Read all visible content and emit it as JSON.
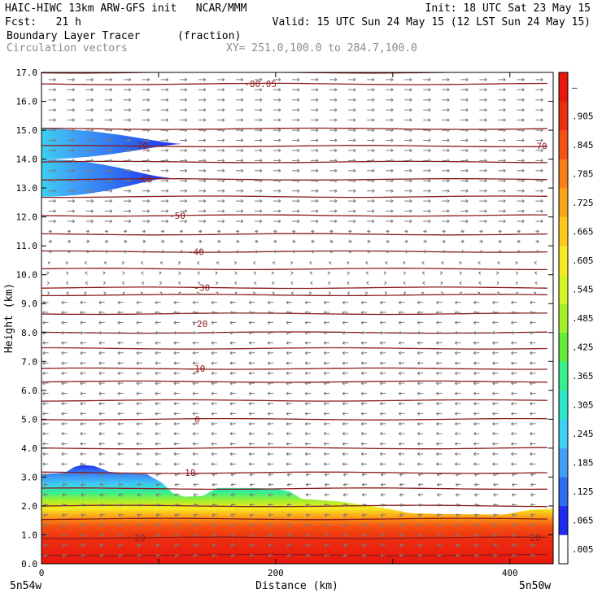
{
  "header": {
    "line1_left": "HAIC-HIWC 13km ARW-GFS init   NCAR/MMM",
    "line1_right": "Init: 18 UTC Sat 23 May 15",
    "line2_left": "Fcst:   21 h",
    "line2_right": "Valid: 15 UTC Sun 24 May 15 (12 LST Sun 24 May 15)",
    "field_name": "Boundary Layer Tracer",
    "field_units": "(fraction)",
    "vector_label": "Circulation vectors",
    "section_label": "XY= 251.0,100.0 to 284.7,100.0"
  },
  "colors": {
    "contour": "#8b1a1a",
    "vector": "#7a7a7a",
    "axis": "#000000"
  },
  "chart_data": {
    "type": "heatmap",
    "xlabel": "Distance (km)",
    "ylabel": "Height (km)",
    "xlim": [
      0,
      437
    ],
    "ylim": [
      0,
      17
    ],
    "x_ticks": [
      0,
      200,
      400
    ],
    "y_ticks": [
      "0.0",
      "1.0",
      "2.0",
      "3.0",
      "4.0",
      "5.0",
      "6.0",
      "7.0",
      "8.0",
      "9.0",
      "10.0",
      "11.0",
      "12.0",
      "13.0",
      "14.0",
      "15.0",
      "16.0",
      "17.0"
    ],
    "x_endpoints": [
      "5n54w",
      "5n50w"
    ],
    "colorbar": {
      "labels": [
        ".005",
        ".065",
        ".125",
        ".185",
        ".245",
        ".305",
        ".365",
        ".425",
        ".485",
        ".545",
        ".605",
        ".665",
        ".725",
        ".785",
        ".845",
        ".905",
        "–"
      ],
      "colors": [
        "#ffffff",
        "#1f2cf0",
        "#2e6cf2",
        "#3fa0f6",
        "#3cd0f2",
        "#2ee6c8",
        "#36f08c",
        "#62ee38",
        "#a2f02a",
        "#d6f426",
        "#f8ea22",
        "#fcc81e",
        "#fca41a",
        "#f98016",
        "#f35212",
        "#ec2e10",
        "#e8160e"
      ]
    },
    "contour_labels": [
      {
        "text": "-80.05",
        "x": 187,
        "y": 16.6
      },
      {
        "text": "-70",
        "x": 84,
        "y": 14.45
      },
      {
        "text": "-70",
        "x": 425,
        "y": 14.45
      },
      {
        "text": "-60",
        "x": 88,
        "y": 13.3
      },
      {
        "text": "-50",
        "x": 116,
        "y": 12.05
      },
      {
        "text": "-40",
        "x": 132,
        "y": 10.8
      },
      {
        "text": "-30",
        "x": 137,
        "y": 9.55
      },
      {
        "text": "-20",
        "x": 135,
        "y": 8.3
      },
      {
        "text": "-10",
        "x": 133,
        "y": 6.75
      },
      {
        "text": "0",
        "x": 133,
        "y": 5.0
      },
      {
        "text": "10",
        "x": 127,
        "y": 3.15
      },
      {
        "text": "20",
        "x": 84,
        "y": 0.9
      },
      {
        "text": "20",
        "x": 422,
        "y": 0.9
      }
    ],
    "contour_levels_km": [
      0.3,
      0.9,
      1.55,
      2.0,
      2.6,
      3.15,
      4.0,
      5.0,
      5.65,
      6.3,
      6.75,
      7.45,
      8.0,
      8.65,
      9.3,
      9.55,
      10.2,
      10.8,
      11.4,
      12.05,
      12.7,
      13.3,
      13.9,
      14.45,
      15.05,
      16.6,
      17.0
    ],
    "boundary_layer_top_km": [
      [
        0,
        3.1
      ],
      [
        20,
        3.15
      ],
      [
        28,
        3.35
      ],
      [
        35,
        3.42
      ],
      [
        45,
        3.38
      ],
      [
        58,
        3.18
      ],
      [
        75,
        3.12
      ],
      [
        90,
        3.1
      ],
      [
        103,
        2.8
      ],
      [
        112,
        2.45
      ],
      [
        122,
        2.32
      ],
      [
        138,
        2.35
      ],
      [
        150,
        2.62
      ],
      [
        180,
        2.62
      ],
      [
        200,
        2.6
      ],
      [
        212,
        2.5
      ],
      [
        222,
        2.25
      ],
      [
        255,
        2.15
      ],
      [
        290,
        1.95
      ],
      [
        315,
        1.75
      ],
      [
        345,
        1.72
      ],
      [
        395,
        1.7
      ],
      [
        408,
        1.8
      ],
      [
        420,
        1.88
      ],
      [
        437,
        1.9
      ]
    ],
    "upper_tracer_km": [
      {
        "base": 14.0,
        "top": 15.05,
        "tip_x": 120
      },
      {
        "base": 12.7,
        "top": 14.0,
        "tip_x": 110
      }
    ]
  }
}
